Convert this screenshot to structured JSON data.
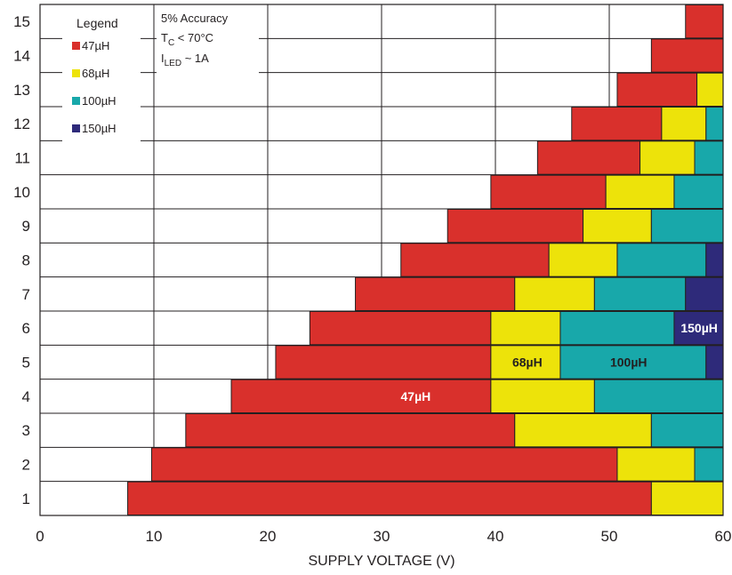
{
  "chart_data": {
    "type": "bar",
    "orientation": "horizontal-ranges",
    "xlabel": "SUPPLY VOLTAGE (V)",
    "xlim": [
      0,
      60
    ],
    "ylim": [
      0.5,
      15.5
    ],
    "x_ticks": [
      "0",
      "10",
      "20",
      "30",
      "40",
      "50",
      "60"
    ],
    "y_ticks": [
      "1",
      "2",
      "3",
      "4",
      "5",
      "6",
      "7",
      "8",
      "9",
      "10",
      "11",
      "12",
      "13",
      "14",
      "15"
    ],
    "grid": true,
    "series": [
      {
        "name": "47µH",
        "color": "#d9302c",
        "segments": [
          [
            1,
            7.7,
            53.7
          ],
          [
            2,
            9.8,
            50.7
          ],
          [
            3,
            12.8,
            41.7
          ],
          [
            4,
            16.8,
            39.6
          ],
          [
            5,
            20.7,
            39.6
          ],
          [
            6,
            23.7,
            39.6
          ],
          [
            7,
            27.7,
            41.7
          ],
          [
            8,
            31.7,
            44.7
          ],
          [
            9,
            35.8,
            47.7
          ],
          [
            10,
            39.6,
            49.7
          ],
          [
            11,
            43.7,
            52.7
          ],
          [
            12,
            46.7,
            54.6
          ],
          [
            13,
            50.7,
            57.7
          ],
          [
            14,
            53.7,
            60
          ],
          [
            15,
            56.7,
            60
          ]
        ]
      },
      {
        "name": "68µH",
        "color": "#ede30a",
        "segments": [
          [
            1,
            53.7,
            60
          ],
          [
            2,
            50.7,
            57.5
          ],
          [
            3,
            41.7,
            53.7
          ],
          [
            4,
            39.6,
            48.7
          ],
          [
            5,
            39.6,
            45.7
          ],
          [
            6,
            39.6,
            45.7
          ],
          [
            7,
            41.7,
            48.7
          ],
          [
            8,
            44.7,
            50.7
          ],
          [
            9,
            47.7,
            53.7
          ],
          [
            10,
            49.7,
            55.7
          ],
          [
            11,
            52.7,
            57.5
          ],
          [
            12,
            54.6,
            58.5
          ],
          [
            13,
            57.7,
            60
          ]
        ]
      },
      {
        "name": "100µH",
        "color": "#18a8aa",
        "segments": [
          [
            2,
            57.5,
            60
          ],
          [
            3,
            53.7,
            60
          ],
          [
            4,
            48.7,
            60
          ],
          [
            5,
            45.7,
            58.5
          ],
          [
            6,
            45.7,
            55.7
          ],
          [
            7,
            48.7,
            56.7
          ],
          [
            8,
            50.7,
            58.5
          ],
          [
            9,
            53.7,
            60
          ],
          [
            10,
            55.7,
            60
          ],
          [
            11,
            57.5,
            60
          ],
          [
            12,
            58.5,
            60
          ]
        ]
      },
      {
        "name": "150µH",
        "color": "#2e2a7a",
        "segments": [
          [
            5,
            58.5,
            60
          ],
          [
            6,
            55.7,
            60
          ],
          [
            7,
            56.7,
            60
          ],
          [
            8,
            58.5,
            60
          ]
        ]
      }
    ],
    "legend": {
      "title": "Legend",
      "placement": "top-left",
      "items": [
        "47µH",
        "68µH",
        "100µH",
        "150µH"
      ]
    },
    "annotation": {
      "line1": "5% Accuracy",
      "line2_main": "T",
      "line2_sub": "C",
      "line2_rest": " < 70°C",
      "line3_main": "I",
      "line3_sub": "LED",
      "line3_rest": " ~ 1A"
    },
    "bar_labels": [
      {
        "text": "47µH",
        "x": 33,
        "y": 4,
        "color": "#ffffff"
      },
      {
        "text": "68µH",
        "x": 42.8,
        "y": 5,
        "color": "#231f20"
      },
      {
        "text": "100µH",
        "x": 51.7,
        "y": 5,
        "color": "#231f20"
      },
      {
        "text": "150µH",
        "x": 57.9,
        "y": 6,
        "color": "#ffffff"
      }
    ]
  }
}
